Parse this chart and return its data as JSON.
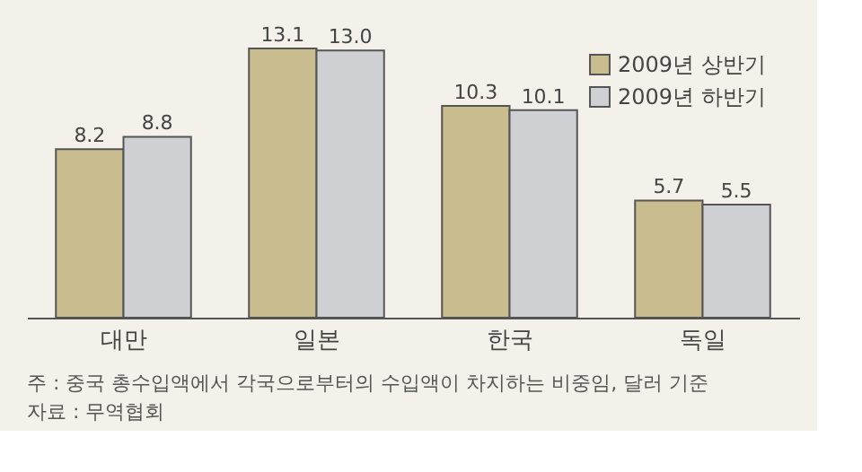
{
  "chart_data": {
    "type": "bar",
    "categories": [
      "대만",
      "일본",
      "한국",
      "독일"
    ],
    "series": [
      {
        "name": "2009년 상반기",
        "color": "#c9bd8f",
        "values": [
          8.2,
          13.1,
          10.3,
          5.7
        ],
        "value_labels": [
          "8.2",
          "13.1",
          "10.3",
          "5.7"
        ]
      },
      {
        "name": "2009년 하반기",
        "color": "#cfd0d4",
        "values": [
          8.8,
          13.0,
          10.1,
          5.5
        ],
        "value_labels": [
          "8.8",
          "13.0",
          "10.1",
          "5.5"
        ]
      }
    ],
    "legend": "top right",
    "annotations": [
      "주 : 중국 총수입액에서 각국으로부터의 수입액이 차지하는 비중임, 달러 기준",
      "자료 : 무역협회"
    ]
  }
}
